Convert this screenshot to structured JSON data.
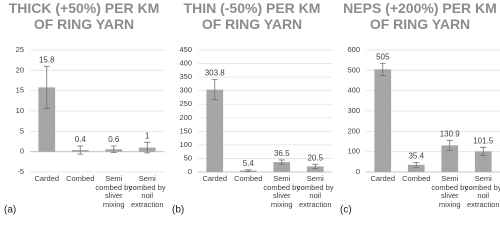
{
  "chart_data": [
    {
      "type": "bar",
      "title": "THICK (+50%) PER KM OF RING YARN",
      "panel_label": "(a)",
      "categories": [
        "Carded",
        "Combed",
        "Semi combed by sliver mixing",
        "Semi combed by noil extraction"
      ],
      "values": [
        15.8,
        0.4,
        0.6,
        1
      ],
      "errors": [
        5.2,
        1,
        0.8,
        1.3
      ],
      "color": "#a6a6a6",
      "error_color": "#6f6f6f",
      "ylim": [
        -5,
        25
      ],
      "yticks": [
        -5,
        0,
        5,
        10,
        15,
        20,
        25
      ],
      "grid": true
    },
    {
      "type": "bar",
      "title": "THIN (-50%) PER KM OF RING YARN",
      "panel_label": "(b)",
      "categories": [
        "Carded",
        "Combed",
        "Semi combed by sliver mixing",
        "Semi combed by noil extraction"
      ],
      "values": [
        303.8,
        5.4,
        36.5,
        20.5
      ],
      "errors": [
        37,
        3,
        8,
        8
      ],
      "color": "#a6a6a6",
      "error_color": "#6f6f6f",
      "ylim": [
        0,
        450
      ],
      "yticks": [
        0,
        50,
        100,
        150,
        200,
        250,
        300,
        350,
        400,
        450
      ],
      "grid": true
    },
    {
      "type": "bar",
      "title": "NEPS (+200%) PER KM OF RING YARN",
      "panel_label": "(c)",
      "categories": [
        "Carded",
        "Combed",
        "Semi combed by sliver mixing",
        "Semi combed by noil extraction"
      ],
      "values": [
        505,
        35.4,
        130.9,
        101.5
      ],
      "errors": [
        30,
        12,
        25,
        20
      ],
      "color": "#a6a6a6",
      "error_color": "#6f6f6f",
      "ylim": [
        0,
        600
      ],
      "yticks": [
        0,
        100,
        200,
        300,
        400,
        500,
        600
      ],
      "grid": true
    }
  ]
}
